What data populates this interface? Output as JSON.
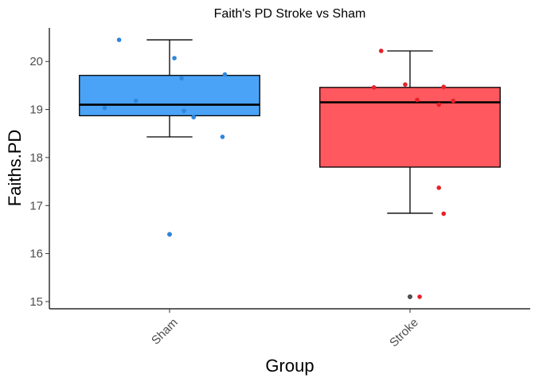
{
  "chart_data": {
    "type": "box",
    "title": "Faith's PD Stroke vs Sham",
    "xlabel": "Group",
    "ylabel": "Faiths.PD",
    "ylim": [
      14.85,
      20.7
    ],
    "yticks": [
      15,
      16,
      17,
      18,
      19,
      20
    ],
    "categories": [
      "Sham",
      "Stroke"
    ],
    "grid": false,
    "legend": "none",
    "boxes": [
      {
        "group": "Sham",
        "fill": "#4aa3f7",
        "point_color": "#2e86de",
        "q1": 18.87,
        "median": 19.1,
        "q3": 19.71,
        "whisker_low": 18.43,
        "whisker_high": 20.45,
        "outliers": [
          16.4
        ],
        "points": [
          {
            "x_offset": -0.21,
            "y": 20.45
          },
          {
            "x_offset": 0.02,
            "y": 20.07
          },
          {
            "x_offset": 0.23,
            "y": 19.73
          },
          {
            "x_offset": 0.05,
            "y": 19.65
          },
          {
            "x_offset": -0.14,
            "y": 19.18
          },
          {
            "x_offset": -0.27,
            "y": 19.03
          },
          {
            "x_offset": 0.06,
            "y": 18.97
          },
          {
            "x_offset": 0.1,
            "y": 18.84
          },
          {
            "x_offset": 0.22,
            "y": 18.43
          },
          {
            "x_offset": 0.0,
            "y": 16.4
          }
        ]
      },
      {
        "group": "Stroke",
        "fill": "#ff585e",
        "point_color": "#e8202a",
        "q1": 17.8,
        "median": 19.15,
        "q3": 19.46,
        "whisker_low": 16.84,
        "whisker_high": 20.22,
        "outliers": [
          15.1
        ],
        "points": [
          {
            "x_offset": -0.12,
            "y": 20.22
          },
          {
            "x_offset": -0.02,
            "y": 19.52
          },
          {
            "x_offset": -0.15,
            "y": 19.46
          },
          {
            "x_offset": 0.14,
            "y": 19.47
          },
          {
            "x_offset": 0.18,
            "y": 19.18
          },
          {
            "x_offset": 0.12,
            "y": 19.1
          },
          {
            "x_offset": 0.03,
            "y": 19.2
          },
          {
            "x_offset": 0.12,
            "y": 17.37
          },
          {
            "x_offset": 0.14,
            "y": 16.83
          },
          {
            "x_offset": 0.04,
            "y": 15.1
          }
        ]
      }
    ]
  }
}
